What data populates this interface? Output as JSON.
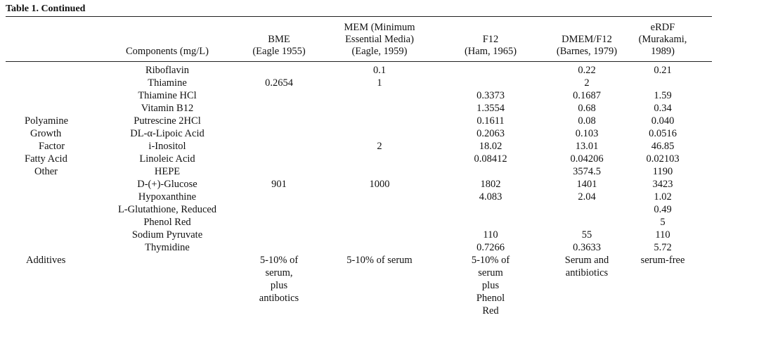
{
  "title": "Table 1. Continued",
  "headers": [
    [
      "Components (mg/L)"
    ],
    [
      "BME",
      "(Eagle 1955)"
    ],
    [
      "MEM (Minimum",
      "Essential Media)",
      "(Eagle, 1959)"
    ],
    [
      "F12",
      "(Ham, 1965)"
    ],
    [
      "DMEM/F12",
      "(Barnes, 1979)"
    ],
    [
      "eRDF",
      "(Murakami,",
      "1989)"
    ]
  ],
  "categories": [
    {
      "row": 4,
      "label": "Polyamine"
    },
    {
      "row": 5,
      "label": "Growth"
    },
    {
      "row": 6,
      "label": "Factor"
    },
    {
      "row": 7,
      "label": "Fatty Acid"
    },
    {
      "row": 8,
      "label": "Other"
    },
    {
      "row": 15,
      "label": "Additives"
    }
  ],
  "rows": [
    [
      "Riboflavin",
      "",
      "0.1",
      "",
      "0.22",
      "0.21"
    ],
    [
      "Thiamine",
      "0.2654",
      "1",
      "",
      "2",
      ""
    ],
    [
      "Thiamine HCl",
      "",
      "",
      "0.3373",
      "0.1687",
      "1.59"
    ],
    [
      "Vitamin B12",
      "",
      "",
      "1.3554",
      "0.68",
      "0.34"
    ],
    [
      "Putrescine 2HCl",
      "",
      "",
      "0.1611",
      "0.08",
      "0.040"
    ],
    [
      "DL-α-Lipoic Acid",
      "",
      "",
      "0.2063",
      "0.103",
      "0.0516"
    ],
    [
      "i-Inositol",
      "",
      "2",
      "18.02",
      "13.01",
      "46.85"
    ],
    [
      "Linoleic Acid",
      "",
      "",
      "0.08412",
      "0.04206",
      "0.02103"
    ],
    [
      "HEPE",
      "",
      "",
      "",
      "3574.5",
      "1190"
    ],
    [
      "D-(+)-Glucose",
      "901",
      "1000",
      "1802",
      "1401",
      "3423"
    ],
    [
      "Hypoxanthine",
      "",
      "",
      "4.083",
      "2.04",
      "1.02"
    ],
    [
      "L-Glutathione, Reduced",
      "",
      "",
      "",
      "",
      "0.49"
    ],
    [
      "Phenol Red",
      "",
      "",
      "",
      "",
      "5"
    ],
    [
      "Sodium Pyruvate",
      "",
      "",
      "110",
      "55",
      "110"
    ],
    [
      "Thymidine",
      "",
      "",
      "0.7266",
      "0.3633",
      "5.72"
    ]
  ],
  "additives": [
    [
      "5-10% of",
      "serum,",
      "plus",
      "antibotics"
    ],
    [
      "5-10% of serum"
    ],
    [
      "5-10% of",
      "serum",
      "plus",
      "Phenol",
      "Red"
    ],
    [
      "Serum and",
      "antibiotics"
    ],
    [
      "serum-free"
    ]
  ]
}
